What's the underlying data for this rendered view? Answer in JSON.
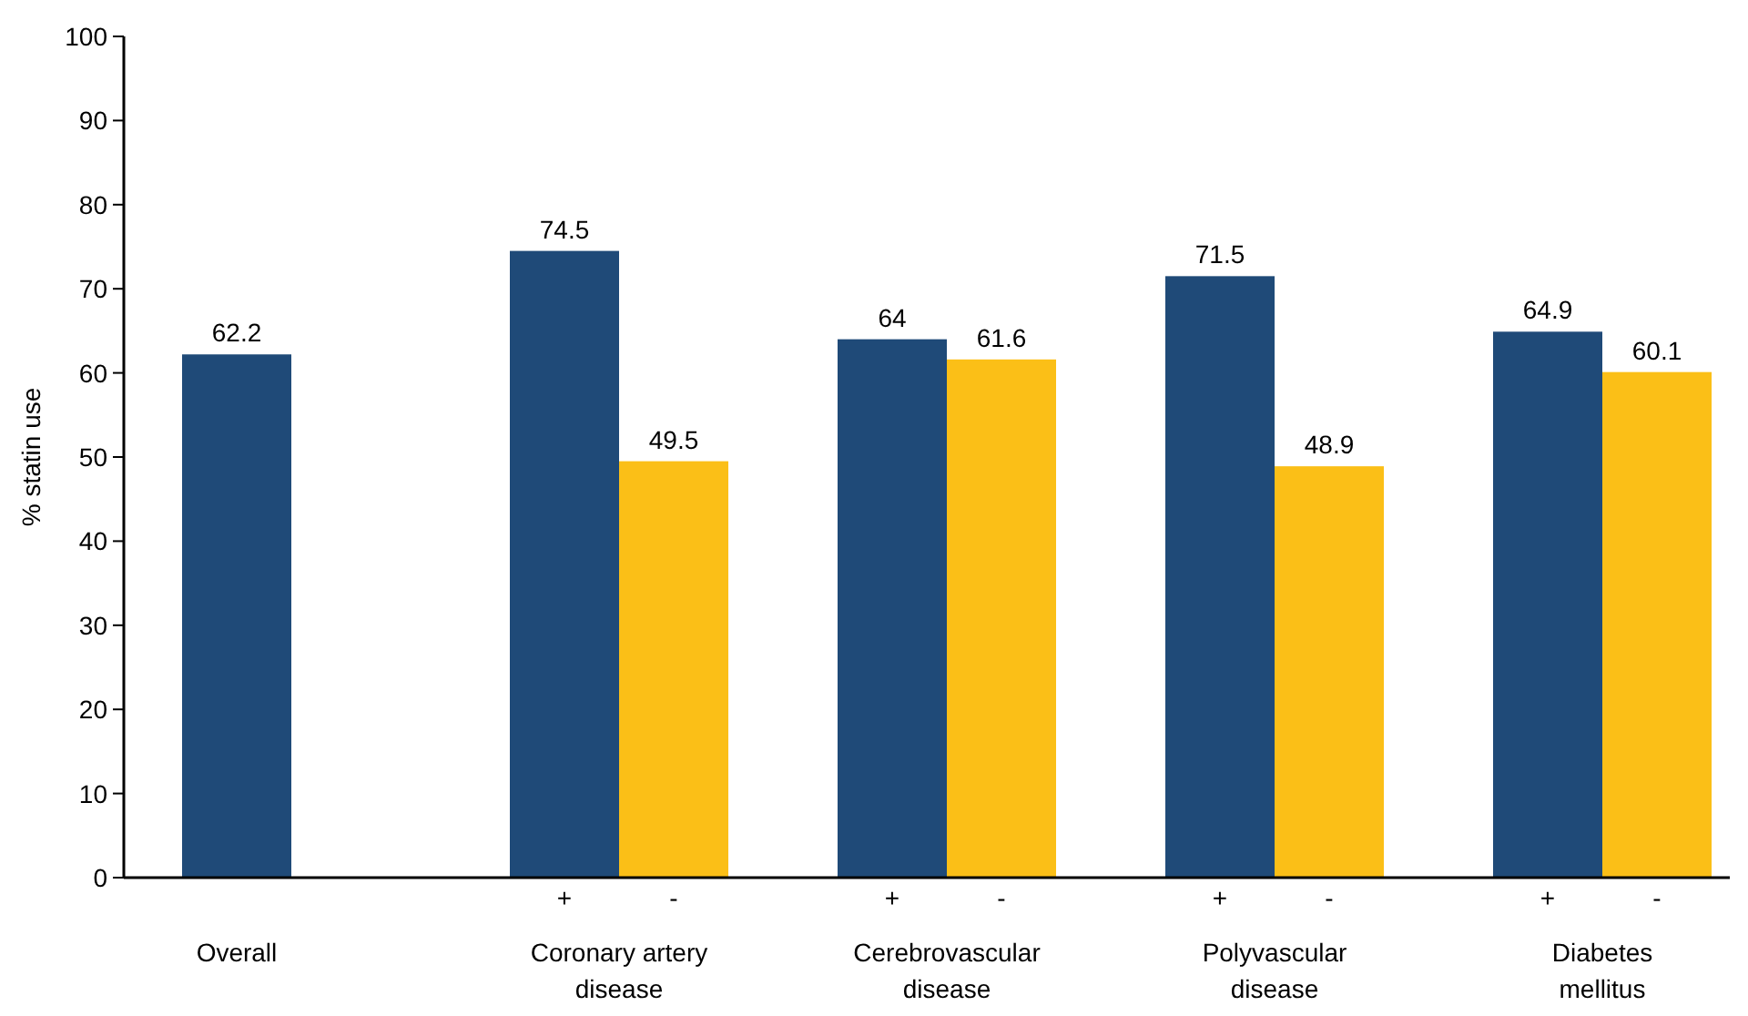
{
  "chart_data": {
    "type": "bar",
    "ylabel": "% statin use",
    "categories": [
      "Overall",
      "Coronary artery disease",
      "Cerebrovascular disease",
      "Polyvascular disease",
      "Diabetes mellitus"
    ],
    "series": [
      {
        "name": "+",
        "color": "#1f4a78",
        "values": [
          62.2,
          74.5,
          64,
          71.5,
          64.9
        ]
      },
      {
        "name": "-",
        "color": "#fbbf17",
        "values": [
          null,
          49.5,
          61.6,
          48.9,
          60.1
        ]
      }
    ],
    "ylim": [
      0,
      100
    ],
    "yticks": [
      0,
      10,
      20,
      30,
      40,
      50,
      60,
      70,
      80,
      90,
      100
    ],
    "data_labels": true,
    "grid": false
  }
}
